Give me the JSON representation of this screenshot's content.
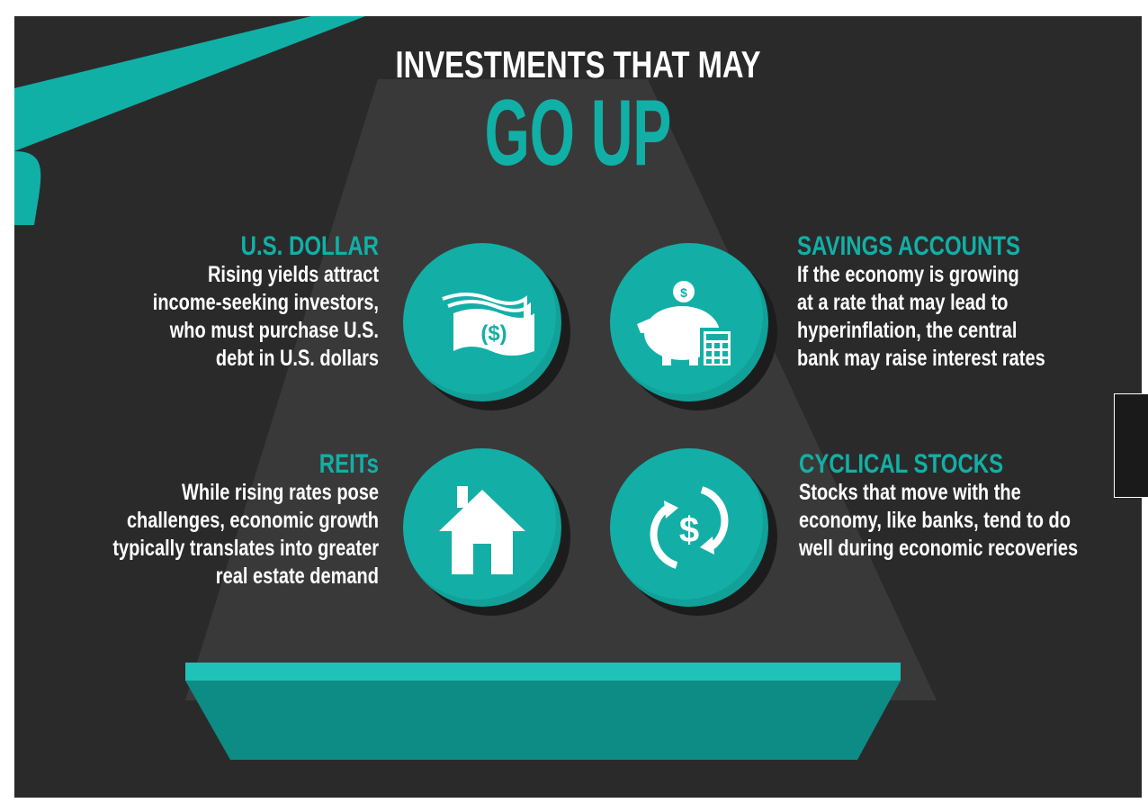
{
  "title": {
    "line1": "INVESTMENTS THAT MAY",
    "line2": "GO UP"
  },
  "items": [
    {
      "heading": "U.S. DOLLAR",
      "lines": [
        "Rising yields attract",
        "income-seeking investors,",
        "who must purchase U.S.",
        "debt in U.S. dollars"
      ],
      "icon": "money-bills-icon"
    },
    {
      "heading": "SAVINGS ACCOUNTS",
      "lines": [
        "If the economy is growing",
        "at a rate that may lead to",
        "hyperinflation, the central",
        "bank may raise interest rates"
      ],
      "icon": "piggy-bank-calculator-icon"
    },
    {
      "heading": "REITs",
      "lines": [
        "While rising rates pose",
        "challenges, economic growth",
        "typically translates into greater",
        "real estate demand"
      ],
      "icon": "house-icon"
    },
    {
      "heading": "CYCLICAL STOCKS",
      "lines": [
        "Stocks that move with the",
        "economy, like banks, tend to do",
        "well during economic recoveries"
      ],
      "icon": "dollar-cycle-icon"
    }
  ],
  "colors": {
    "background": "#2b2a2b",
    "accent": "#11b0a6",
    "text": "#ffffff"
  }
}
